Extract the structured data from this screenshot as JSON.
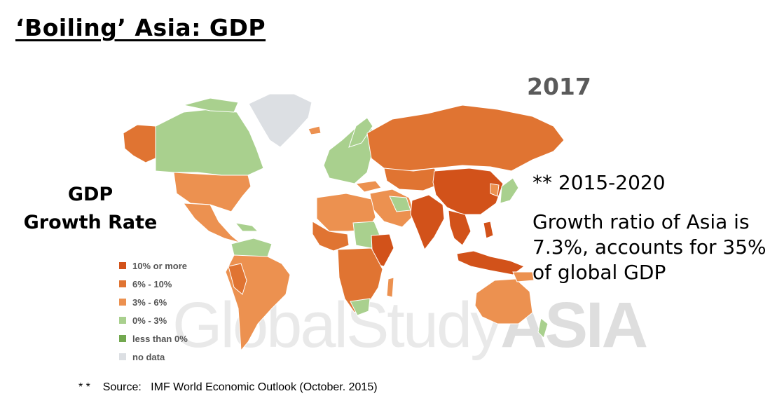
{
  "slide": {
    "title": "‘Boiling’ Asia: GDP",
    "year": "2017",
    "map_label": [
      "GDP",
      "Growth Rate"
    ],
    "watermark": {
      "light": "GlobalStudy",
      "bold": "ASIA"
    },
    "note_period": "** 2015-2020",
    "note_body": "Growth ratio of Asia is 7.3%, accounts for 35% of global GDP",
    "source_marker": "* *",
    "source_label": "Source:",
    "source_text": "IMF World Economic Outlook (October. 2015)"
  },
  "legend": [
    {
      "label": "10% or more",
      "color": "#d2521a"
    },
    {
      "label": "6% - 10%",
      "color": "#e07432"
    },
    {
      "label": "3% - 6%",
      "color": "#ec9150"
    },
    {
      "label": "0% - 3%",
      "color": "#a9d08e"
    },
    {
      "label": "less than 0%",
      "color": "#72a84f"
    },
    {
      "label": "no data",
      "color": "#dcdfe3"
    }
  ]
}
